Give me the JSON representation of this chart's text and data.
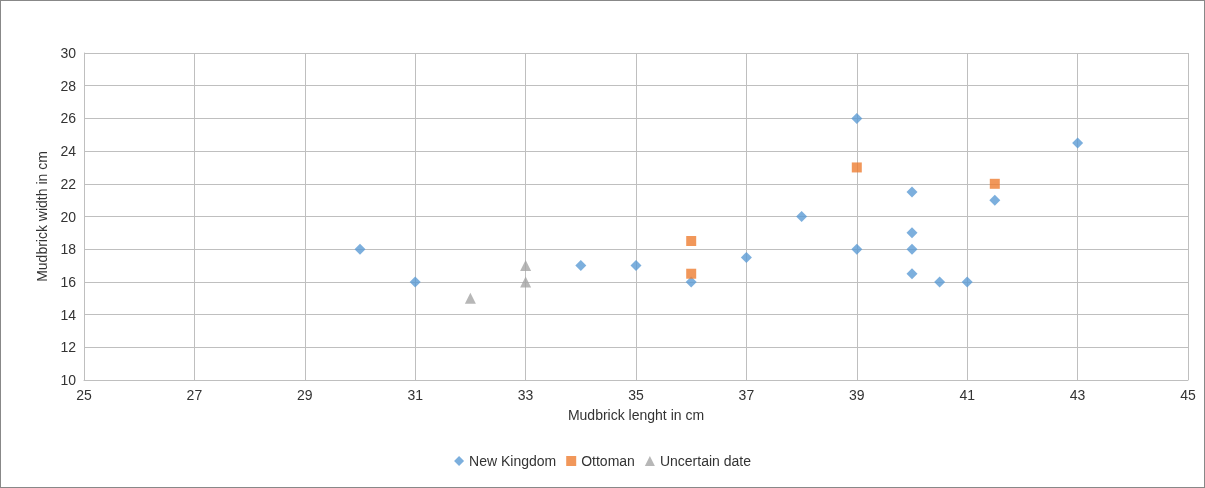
{
  "chart_data": {
    "type": "scatter",
    "xlabel": "Mudbrick lenght in cm",
    "ylabel": "Mudbrick width in cm",
    "xlim": [
      25,
      45
    ],
    "xticks": [
      25,
      27,
      29,
      31,
      33,
      35,
      37,
      39,
      41,
      43,
      45
    ],
    "ylim": [
      10,
      30
    ],
    "yticks": [
      10,
      12,
      14,
      16,
      18,
      20,
      22,
      24,
      26,
      28,
      30
    ],
    "grid": true,
    "legend": "bottom",
    "series": [
      {
        "name": "New Kingdom",
        "color": "#5b9bd5",
        "marker": "diamond",
        "x": [
          30,
          31,
          34,
          35,
          36,
          37,
          38,
          39,
          39,
          40,
          40,
          40,
          40,
          40.5,
          41,
          41.5,
          43
        ],
        "values": [
          18,
          16,
          17,
          17,
          16,
          17.5,
          20,
          26,
          18,
          21.5,
          19,
          18,
          16.5,
          16,
          16,
          21,
          24.5
        ]
      },
      {
        "name": "Ottoman",
        "color": "#ed7d31",
        "marker": "square",
        "x": [
          36,
          36,
          39,
          41.5
        ],
        "values": [
          18.5,
          16.5,
          23,
          22
        ]
      },
      {
        "name": "Uncertain date",
        "color": "#a5a5a5",
        "marker": "triangle",
        "x": [
          32,
          33,
          33
        ],
        "values": [
          15,
          17,
          16
        ]
      }
    ]
  }
}
